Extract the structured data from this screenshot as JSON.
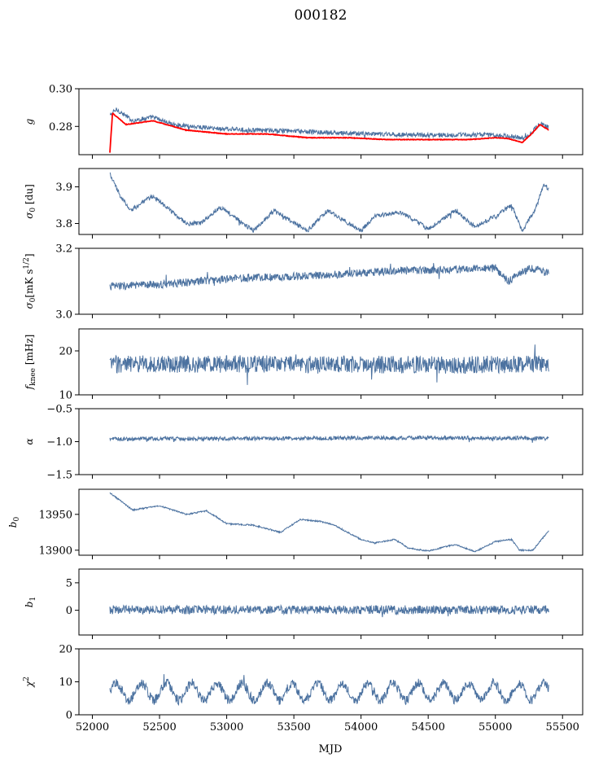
{
  "figure": {
    "title": "000182"
  },
  "colors": {
    "series": "#4c72a0",
    "model": "#ff0000"
  },
  "chart_data": [
    {
      "type": "line",
      "ylabel": "g",
      "xlim": [
        51900,
        55650
      ],
      "ylim": [
        0.265,
        0.3
      ],
      "yticks": [
        0.28,
        0.3
      ],
      "ytick_labels": [
        "0.28",
        "0.30"
      ],
      "series": [
        {
          "color": "#4c72a0",
          "x_range": [
            52130,
            55400
          ],
          "keypoints": [
            [
              52130,
              0.286
            ],
            [
              52180,
              0.289
            ],
            [
              52300,
              0.283
            ],
            [
              52450,
              0.285
            ],
            [
              52600,
              0.281
            ],
            [
              52900,
              0.279
            ],
            [
              53200,
              0.278
            ],
            [
              53500,
              0.2775
            ],
            [
              53800,
              0.2765
            ],
            [
              54100,
              0.276
            ],
            [
              54400,
              0.2755
            ],
            [
              54700,
              0.2755
            ],
            [
              55000,
              0.2755
            ],
            [
              55150,
              0.2745
            ],
            [
              55230,
              0.274
            ],
            [
              55300,
              0.279
            ],
            [
              55340,
              0.282
            ],
            [
              55400,
              0.279
            ]
          ]
        },
        {
          "color": "#ff0000",
          "x_range": [
            52130,
            55400
          ],
          "keypoints": [
            [
              52130,
              0.266
            ],
            [
              52150,
              0.287
            ],
            [
              52250,
              0.281
            ],
            [
              52450,
              0.283
            ],
            [
              52700,
              0.278
            ],
            [
              53000,
              0.276
            ],
            [
              53300,
              0.276
            ],
            [
              53600,
              0.274
            ],
            [
              53900,
              0.274
            ],
            [
              54200,
              0.273
            ],
            [
              54500,
              0.273
            ],
            [
              54800,
              0.273
            ],
            [
              55000,
              0.274
            ],
            [
              55100,
              0.2735
            ],
            [
              55200,
              0.2715
            ],
            [
              55270,
              0.276
            ],
            [
              55330,
              0.281
            ],
            [
              55400,
              0.278
            ]
          ]
        }
      ]
    },
    {
      "type": "line",
      "ylabel": "σ0 [du]",
      "xlim": [
        51900,
        55650
      ],
      "ylim": [
        3.77,
        3.95
      ],
      "yticks": [
        3.8,
        3.9
      ],
      "ytick_labels": [
        "3.8",
        "3.9"
      ],
      "series": [
        {
          "color": "#4c72a0",
          "x_range": [
            52130,
            55400
          ],
          "keypoints": [
            [
              52130,
              3.935
            ],
            [
              52200,
              3.88
            ],
            [
              52280,
              3.835
            ],
            [
              52450,
              3.875
            ],
            [
              52700,
              3.8
            ],
            [
              52800,
              3.8
            ],
            [
              52950,
              3.845
            ],
            [
              53200,
              3.78
            ],
            [
              53350,
              3.835
            ],
            [
              53600,
              3.78
            ],
            [
              53750,
              3.835
            ],
            [
              54000,
              3.78
            ],
            [
              54100,
              3.82
            ],
            [
              54300,
              3.83
            ],
            [
              54500,
              3.785
            ],
            [
              54700,
              3.835
            ],
            [
              54850,
              3.79
            ],
            [
              55000,
              3.82
            ],
            [
              55120,
              3.85
            ],
            [
              55200,
              3.78
            ],
            [
              55300,
              3.84
            ],
            [
              55360,
              3.905
            ],
            [
              55400,
              3.895
            ]
          ]
        }
      ]
    },
    {
      "type": "line",
      "ylabel": "σ0[mK s^1/2]",
      "xlim": [
        51900,
        55650
      ],
      "ylim": [
        3.0,
        3.2
      ],
      "yticks": [
        3.0,
        3.2
      ],
      "ytick_labels": [
        "3.0",
        "3.2"
      ],
      "series": [
        {
          "color": "#4c72a0",
          "x_range": [
            52130,
            55400
          ],
          "keypoints": [
            [
              52130,
              3.085
            ],
            [
              52500,
              3.09
            ],
            [
              52800,
              3.1
            ],
            [
              53100,
              3.11
            ],
            [
              53500,
              3.115
            ],
            [
              53800,
              3.12
            ],
            [
              54200,
              3.13
            ],
            [
              54600,
              3.135
            ],
            [
              55000,
              3.14
            ],
            [
              55100,
              3.1
            ],
            [
              55250,
              3.14
            ],
            [
              55400,
              3.125
            ]
          ]
        }
      ]
    },
    {
      "type": "line",
      "ylabel": "fknee [mHz]",
      "xlim": [
        51900,
        55650
      ],
      "ylim": [
        10,
        25
      ],
      "yticks": [
        10,
        20
      ],
      "ytick_labels": [
        "10",
        "20"
      ],
      "series": [
        {
          "color": "#4c72a0",
          "x_range": [
            52130,
            55400
          ],
          "keypoints": [
            [
              52130,
              17
            ],
            [
              53500,
              17
            ],
            [
              54500,
              16.8
            ],
            [
              55400,
              17
            ]
          ]
        }
      ]
    },
    {
      "type": "line",
      "ylabel": "α",
      "xlim": [
        51900,
        55650
      ],
      "ylim": [
        -1.5,
        -0.5
      ],
      "yticks": [
        -1.5,
        -1.0,
        -0.5
      ],
      "ytick_labels": [
        "−1.5",
        "−1.0",
        "−0.5"
      ],
      "series": [
        {
          "color": "#4c72a0",
          "x_range": [
            52130,
            55400
          ],
          "keypoints": [
            [
              52130,
              -0.96
            ],
            [
              53500,
              -0.95
            ],
            [
              54500,
              -0.94
            ],
            [
              55400,
              -0.95
            ]
          ]
        }
      ]
    },
    {
      "type": "line",
      "ylabel": "b0",
      "xlim": [
        51900,
        55650
      ],
      "ylim": [
        13893,
        13985
      ],
      "yticks": [
        13900,
        13950
      ],
      "ytick_labels": [
        "13900",
        "13950"
      ],
      "series": [
        {
          "color": "#4c72a0",
          "x_range": [
            52130,
            55400
          ],
          "keypoints": [
            [
              52130,
              13980
            ],
            [
              52300,
              13956
            ],
            [
              52500,
              13962
            ],
            [
              52700,
              13950
            ],
            [
              52850,
              13955
            ],
            [
              53000,
              13937
            ],
            [
              53200,
              13935
            ],
            [
              53400,
              13925
            ],
            [
              53550,
              13943
            ],
            [
              53700,
              13940
            ],
            [
              53800,
              13935
            ],
            [
              54000,
              13915
            ],
            [
              54100,
              13910
            ],
            [
              54250,
              13915
            ],
            [
              54350,
              13903
            ],
            [
              54500,
              13899
            ],
            [
              54700,
              13908
            ],
            [
              54850,
              13898
            ],
            [
              55000,
              13912
            ],
            [
              55120,
              13915
            ],
            [
              55180,
              13900
            ],
            [
              55280,
              13900
            ],
            [
              55400,
              13928
            ]
          ]
        }
      ]
    },
    {
      "type": "line",
      "ylabel": "b1",
      "xlim": [
        51900,
        55650
      ],
      "ylim": [
        -4.5,
        7.5
      ],
      "yticks": [
        0,
        5
      ],
      "ytick_labels": [
        "0",
        "5"
      ],
      "series": [
        {
          "color": "#4c72a0",
          "x_range": [
            52130,
            55400
          ],
          "keypoints": [
            [
              52130,
              0.1
            ],
            [
              55400,
              0.1
            ]
          ]
        }
      ]
    },
    {
      "type": "line",
      "ylabel": "χ2",
      "xlim": [
        51900,
        55650
      ],
      "ylim": [
        0,
        20
      ],
      "yticks": [
        0,
        10,
        20
      ],
      "ytick_labels": [
        "0",
        "10",
        "20"
      ],
      "series": [
        {
          "color": "#4c72a0",
          "x_range": [
            52130,
            55400
          ],
          "keypoints": [
            [
              52130,
              7
            ],
            [
              55400,
              7
            ]
          ]
        }
      ]
    }
  ],
  "x_axis": {
    "label": "MJD",
    "ticks": [
      52000,
      52500,
      53000,
      53500,
      54000,
      54500,
      55000,
      55500
    ],
    "tick_labels": [
      "52000",
      "52500",
      "53000",
      "53500",
      "54000",
      "54500",
      "55000",
      "55500"
    ]
  }
}
